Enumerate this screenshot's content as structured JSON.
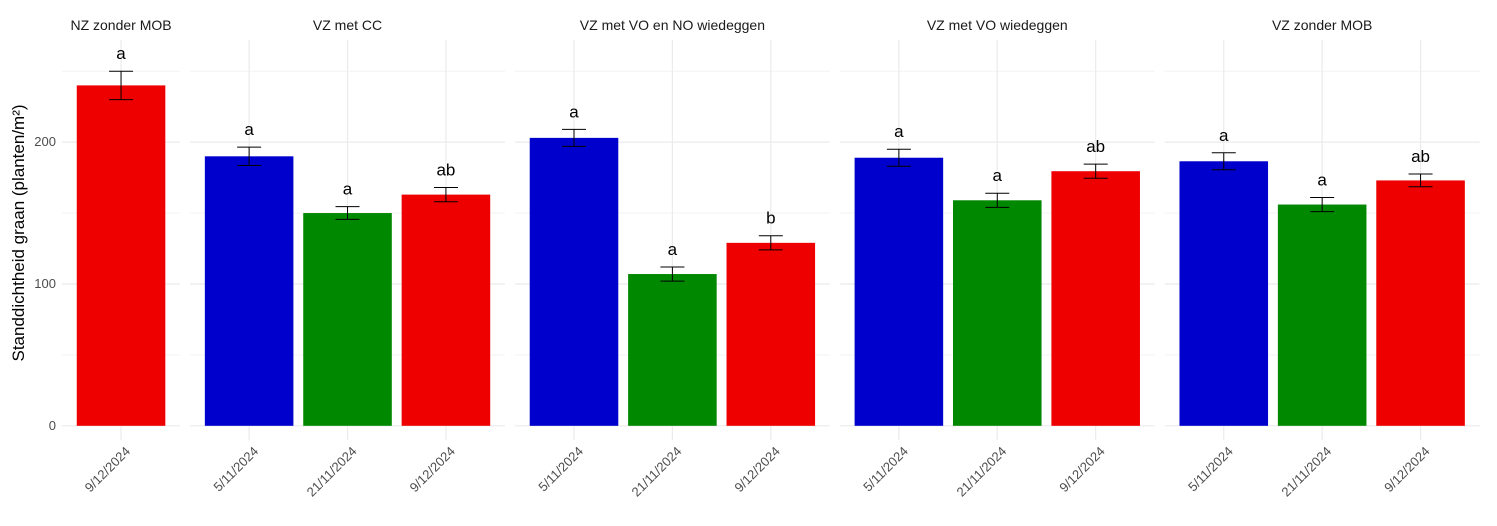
{
  "chart_data": {
    "type": "bar",
    "y_label": "Standdichtheid graan (planten/m²)",
    "ylim": [
      -10,
      272
    ],
    "yticks": [
      0,
      100,
      200
    ],
    "minor_yticks": [
      50,
      150,
      250
    ],
    "grid": true,
    "panels": [
      {
        "title": "NZ zonder MOB",
        "categories": [
          "9/12/2024"
        ],
        "values": [
          240
        ],
        "errors": [
          10
        ],
        "colors": [
          "#ee0000"
        ],
        "annotations": [
          "a"
        ]
      },
      {
        "title": "VZ met CC",
        "categories": [
          "5/11/2024",
          "21/11/2024",
          "9/12/2024"
        ],
        "values": [
          190,
          150,
          163
        ],
        "errors": [
          6.5,
          4.5,
          5
        ],
        "colors": [
          "#0000cc",
          "#008800",
          "#ee0000"
        ],
        "annotations": [
          "a",
          "a",
          "ab"
        ]
      },
      {
        "title": "VZ met VO en NO wiedeggen",
        "categories": [
          "5/11/2024",
          "21/11/2024",
          "9/12/2024"
        ],
        "values": [
          203,
          107,
          129
        ],
        "errors": [
          6,
          5,
          5
        ],
        "colors": [
          "#0000cc",
          "#008800",
          "#ee0000"
        ],
        "annotations": [
          "a",
          "a",
          "b"
        ]
      },
      {
        "title": "VZ met VO wiedeggen",
        "categories": [
          "5/11/2024",
          "21/11/2024",
          "9/12/2024"
        ],
        "values": [
          189,
          159,
          179.5
        ],
        "errors": [
          6,
          5,
          5
        ],
        "colors": [
          "#0000cc",
          "#008800",
          "#ee0000"
        ],
        "annotations": [
          "a",
          "a",
          "ab"
        ]
      },
      {
        "title": "VZ zonder MOB",
        "categories": [
          "5/11/2024",
          "21/11/2024",
          "9/12/2024"
        ],
        "values": [
          186.5,
          156,
          173
        ],
        "errors": [
          6,
          5,
          4.5
        ],
        "colors": [
          "#0000cc",
          "#008800",
          "#ee0000"
        ],
        "annotations": [
          "a",
          "a",
          "ab"
        ]
      }
    ]
  }
}
